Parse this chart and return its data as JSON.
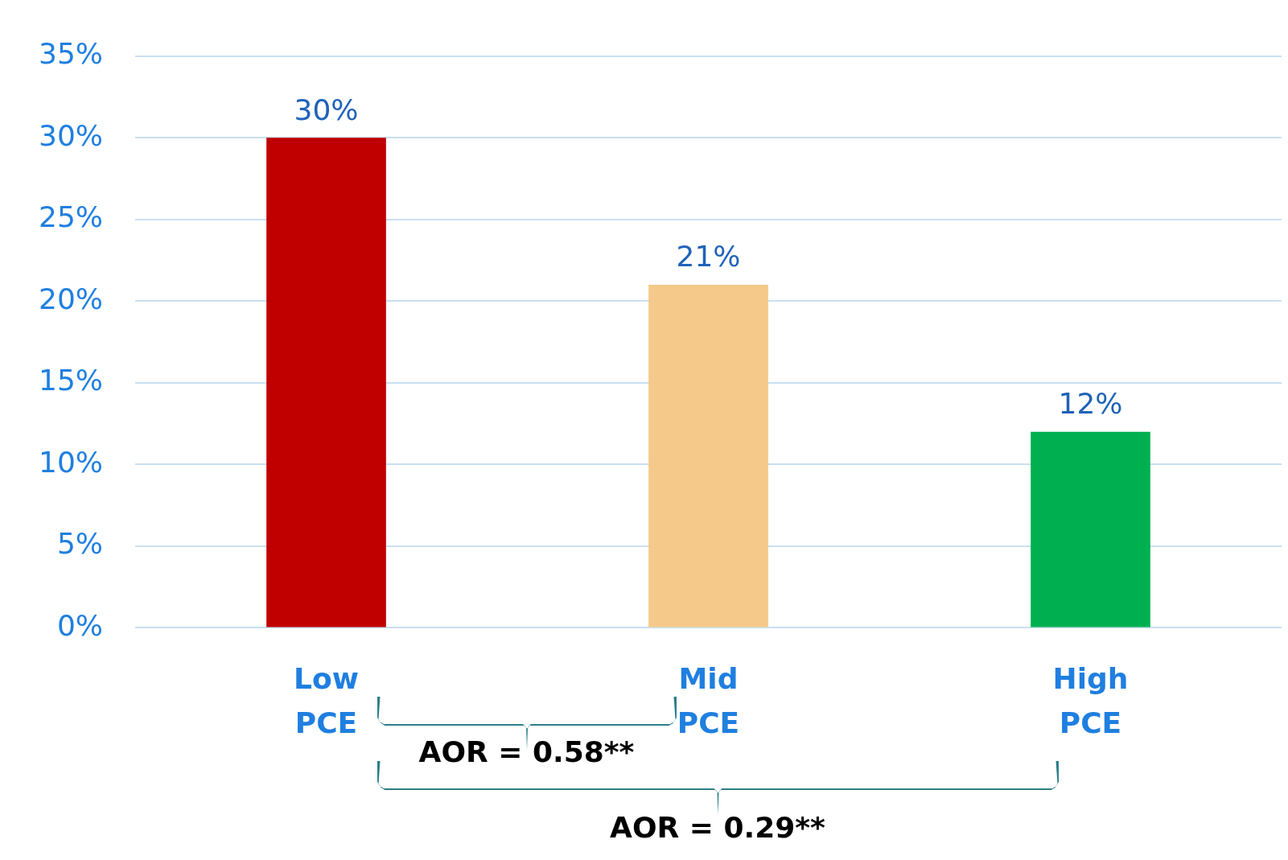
{
  "chart_data": {
    "type": "bar",
    "categories": [
      "Low PCE",
      "Mid PCE",
      "High PCE"
    ],
    "values": [
      30,
      21,
      12
    ],
    "colors": [
      "#c00000",
      "#f4c98a",
      "#00b050"
    ],
    "value_labels": [
      "30%",
      "21%",
      "12%"
    ],
    "ylim": [
      0,
      35
    ],
    "yticks": [
      {
        "value": 0,
        "label": "0%"
      },
      {
        "value": 5,
        "label": "5%"
      },
      {
        "value": 10,
        "label": "10%"
      },
      {
        "value": 15,
        "label": "15%"
      },
      {
        "value": 20,
        "label": "20%"
      },
      {
        "value": 25,
        "label": "25%"
      },
      {
        "value": 30,
        "label": "30%"
      },
      {
        "value": 35,
        "label": "35%"
      }
    ],
    "grid": "y",
    "legend": false,
    "annotations": [
      "AOR = 0.58**",
      "AOR = 0.29**"
    ]
  }
}
